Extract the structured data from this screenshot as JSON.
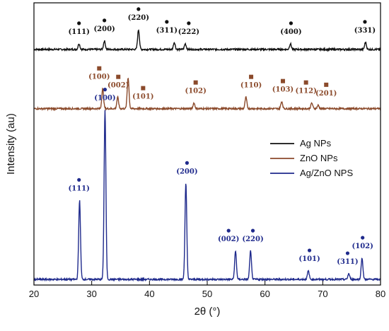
{
  "chart_data": {
    "type": "line",
    "title": "",
    "xlabel": "2θ (°)",
    "ylabel": "Intensity (au)",
    "xlim": [
      20,
      80
    ],
    "x_ticks": [
      20,
      30,
      40,
      50,
      60,
      70,
      80
    ],
    "grid": false,
    "legend_position": "right",
    "series": [
      {
        "name": "Ag NPs",
        "color": "#111111",
        "baseline": 0.835,
        "peaks": [
          [
            27.8,
            0.02
          ],
          [
            32.2,
            0.03
          ],
          [
            38.1,
            0.07
          ],
          [
            44.3,
            0.025
          ],
          [
            46.2,
            0.02
          ],
          [
            64.4,
            0.02
          ],
          [
            77.4,
            0.025
          ]
        ],
        "labels": [
          {
            "text": "(111)",
            "x": 27.8
          },
          {
            "text": "(200)",
            "x": 32.2
          },
          {
            "text": "(220)",
            "x": 38.1
          },
          {
            "text": "(311)",
            "x": 43.0
          },
          {
            "text": "(222)",
            "x": 46.8
          },
          {
            "text": "(400)",
            "x": 64.5
          },
          {
            "text": "(331)",
            "x": 77.3
          }
        ]
      },
      {
        "name": "ZnO NPs",
        "color": "#8b4a2b",
        "baseline": 0.625,
        "peaks": [
          [
            31.9,
            0.07
          ],
          [
            34.5,
            0.04
          ],
          [
            36.3,
            0.11
          ],
          [
            47.7,
            0.02
          ],
          [
            56.7,
            0.04
          ],
          [
            62.9,
            0.025
          ],
          [
            68.1,
            0.02
          ],
          [
            69.2,
            0.012
          ]
        ],
        "labels": [
          {
            "text": "(100)",
            "x": 31.3
          },
          {
            "text": "(002)",
            "x": 34.6
          },
          {
            "text": "(101)",
            "x": 38.9
          },
          {
            "text": "(102)",
            "x": 48.0
          },
          {
            "text": "(110)",
            "x": 57.6
          },
          {
            "text": "(103)",
            "x": 63.1
          },
          {
            "text": "(112)",
            "x": 67.1
          },
          {
            "text": "(201)",
            "x": 70.6
          }
        ]
      },
      {
        "name": "Ag/ZnO NPS",
        "color": "#1f2a8c",
        "baseline": 0.02,
        "peaks": [
          [
            27.9,
            0.28
          ],
          [
            32.3,
            0.6
          ],
          [
            46.3,
            0.34
          ],
          [
            54.9,
            0.1
          ],
          [
            57.5,
            0.1
          ],
          [
            67.5,
            0.03
          ],
          [
            74.5,
            0.02
          ],
          [
            76.8,
            0.075
          ]
        ],
        "labels": [
          {
            "text": "(111)",
            "x": 27.8
          },
          {
            "text": "(100)",
            "x": 32.3
          },
          {
            "text": "(200)",
            "x": 46.5
          },
          {
            "text": "(002)",
            "x": 53.7
          },
          {
            "text": "(220)",
            "x": 57.9
          },
          {
            "text": "(101)",
            "x": 67.7
          },
          {
            "text": "(311)",
            "x": 74.3
          },
          {
            "text": "(102)",
            "x": 76.9
          }
        ]
      }
    ]
  }
}
